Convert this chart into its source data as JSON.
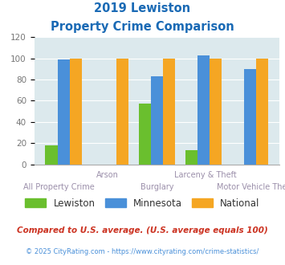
{
  "title_line1": "2019 Lewiston",
  "title_line2": "Property Crime Comparison",
  "categories": [
    "All Property Crime",
    "Arson",
    "Burglary",
    "Larceny & Theft",
    "Motor Vehicle Theft"
  ],
  "lewiston": [
    18,
    0,
    57,
    13,
    0
  ],
  "minnesota": [
    99,
    0,
    83,
    103,
    90
  ],
  "national": [
    100,
    100,
    100,
    100,
    100
  ],
  "color_lewiston": "#6abf2e",
  "color_minnesota": "#4a90d9",
  "color_national": "#f5a623",
  "title_color": "#1a6ab5",
  "xlabel_color_top": "#9b8faa",
  "xlabel_color_bot": "#9b8faa",
  "ylabel_color": "#777777",
  "bg_color": "#dce9ed",
  "ylim": [
    0,
    120
  ],
  "yticks": [
    0,
    20,
    40,
    60,
    80,
    100,
    120
  ],
  "footnote1": "Compared to U.S. average. (U.S. average equals 100)",
  "footnote2": "© 2025 CityRating.com - https://www.cityrating.com/crime-statistics/",
  "footnote1_color": "#cc3322",
  "footnote2_color": "#4a90d9",
  "legend_labels": [
    "Lewiston",
    "Minnesota",
    "National"
  ]
}
